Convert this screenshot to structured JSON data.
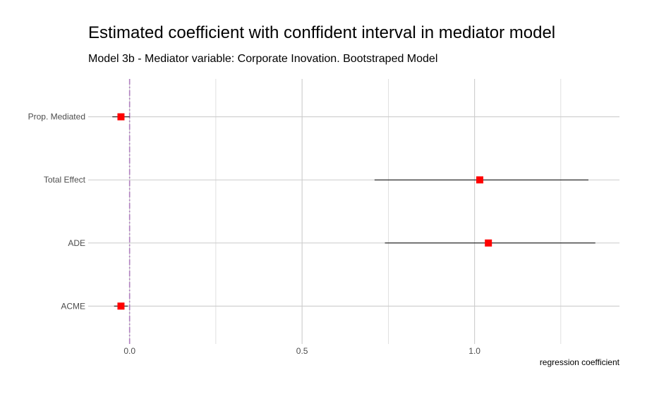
{
  "chart_data": {
    "type": "scatter",
    "title": "Estimated coefficient with conffident interval in mediator model",
    "subtitle": "Model 3b - Mediator variable: Corporate Inovation. Bootstraped Model",
    "xlabel": "regression coefficient",
    "ylabel": "",
    "xlim": [
      -0.12,
      1.42
    ],
    "x_ticks": [
      0.0,
      0.5,
      1.0
    ],
    "x_tick_labels": [
      "0.0",
      "0.5",
      "1.0"
    ],
    "categories": [
      "Prop. Mediated",
      "Total Effect",
      "ADE",
      "ACME"
    ],
    "estimates": [
      -0.025,
      1.015,
      1.04,
      -0.025
    ],
    "ci_lower": [
      -0.05,
      0.71,
      0.74,
      -0.045
    ],
    "ci_upper": [
      0.0,
      1.33,
      1.35,
      -0.005
    ],
    "reference_line_x": 0.0,
    "grid": true,
    "legend": "none",
    "colors": {
      "point": "#ff0000",
      "reference_line": "#b07fbf",
      "grid": "#cccccc",
      "errorbar": "#000000"
    }
  }
}
